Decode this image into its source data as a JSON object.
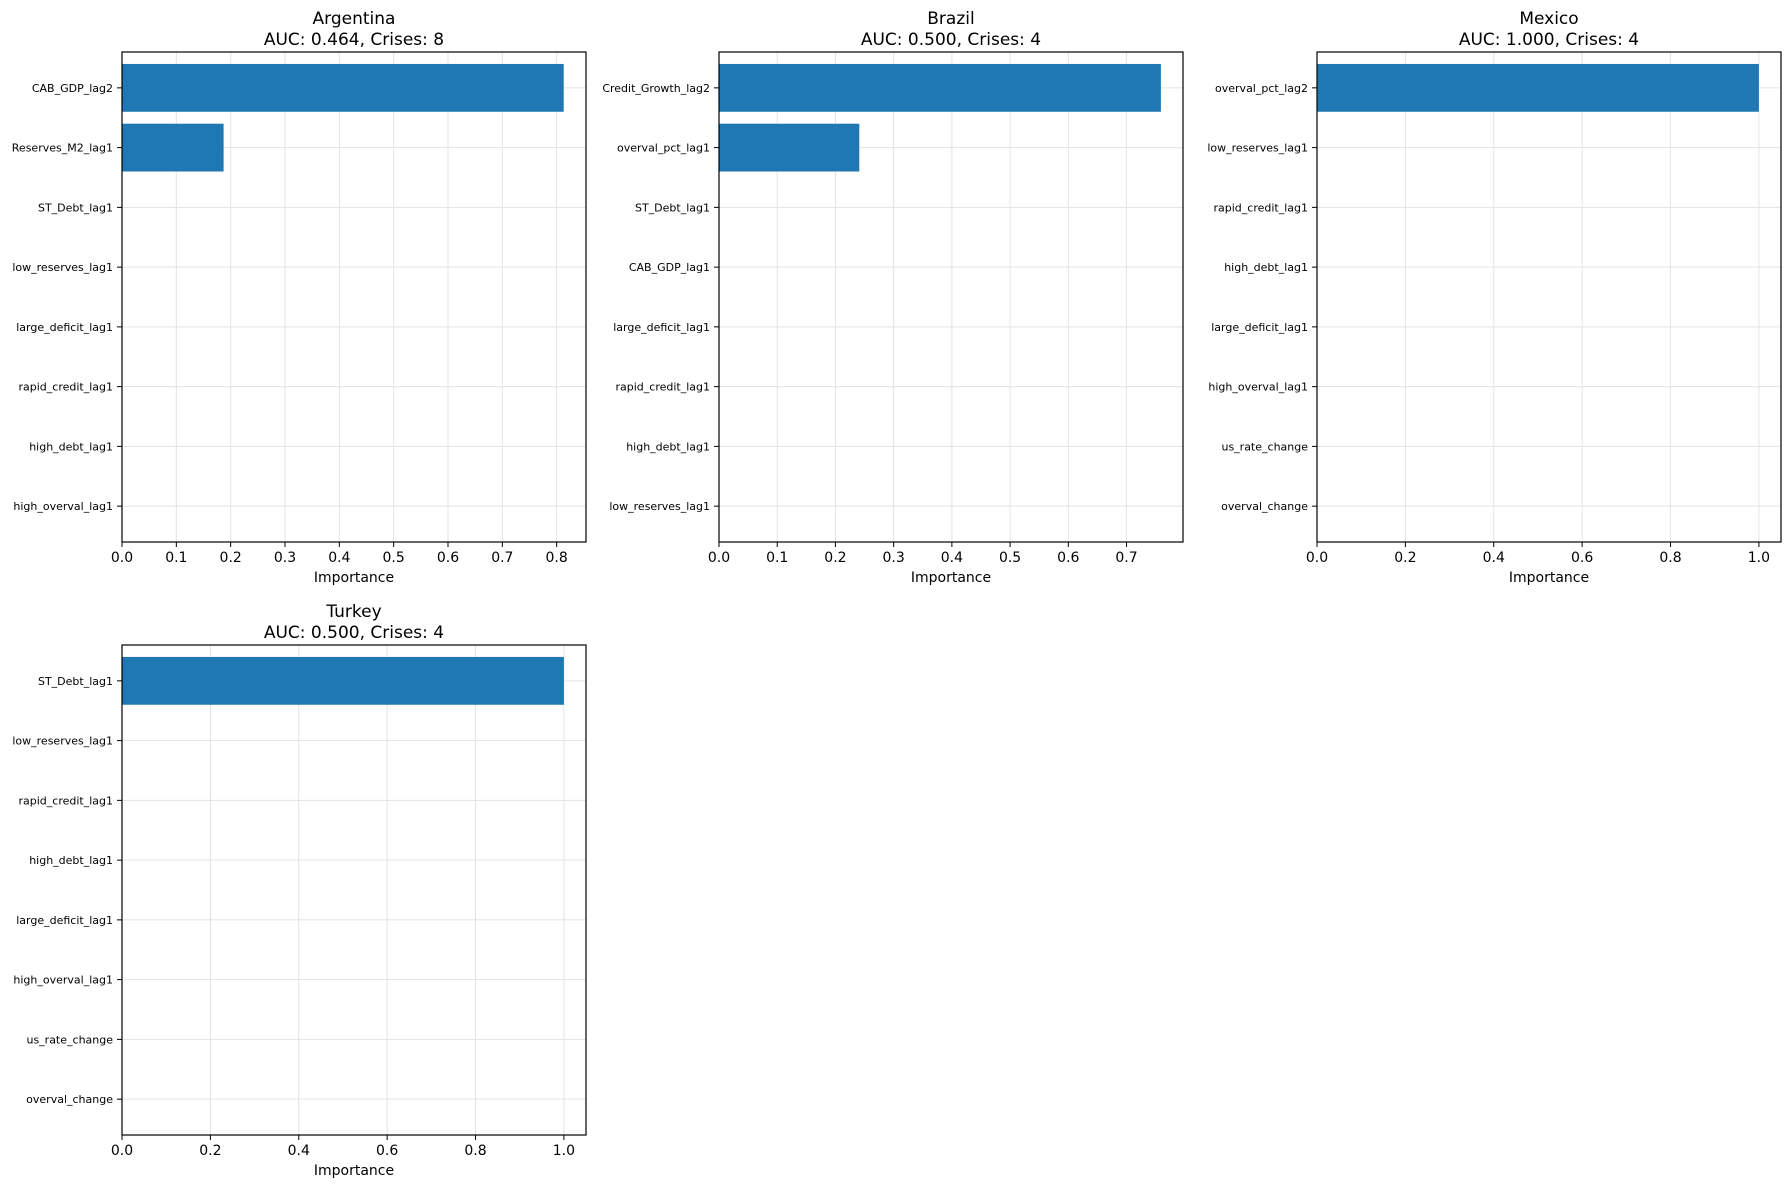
{
  "figure": {
    "bar_color": "#1f77b4"
  },
  "chart_data": [
    {
      "type": "bar",
      "orientation": "horizontal",
      "title": "Argentina\nAUC: 0.464, Crises: 8",
      "title_lines": [
        "Argentina",
        "AUC: 0.464, Crises: 8"
      ],
      "xlabel": "Importance",
      "ylabel": "",
      "categories": [
        "CAB_GDP_lag2",
        "Reserves_M2_lag1",
        "ST_Debt_lag1",
        "low_reserves_lag1",
        "large_deficit_lag1",
        "rapid_credit_lag1",
        "high_debt_lag1",
        "high_overval_lag1"
      ],
      "values": [
        0.813,
        0.187,
        0,
        0,
        0,
        0,
        0,
        0
      ],
      "xlim": [
        0,
        0.854
      ],
      "xticks": [
        "0.0",
        "0.1",
        "0.2",
        "0.3",
        "0.4",
        "0.5",
        "0.6",
        "0.7",
        "0.8"
      ],
      "grid": true
    },
    {
      "type": "bar",
      "orientation": "horizontal",
      "title": "Brazil\nAUC: 0.500, Crises: 4",
      "title_lines": [
        "Brazil",
        "AUC: 0.500, Crises: 4"
      ],
      "xlabel": "Importance",
      "ylabel": "",
      "categories": [
        "Credit_Growth_lag2",
        "overval_pct_lag1",
        "ST_Debt_lag1",
        "CAB_GDP_lag1",
        "large_deficit_lag1",
        "rapid_credit_lag1",
        "high_debt_lag1",
        "low_reserves_lag1"
      ],
      "values": [
        0.759,
        0.241,
        0,
        0,
        0,
        0,
        0,
        0
      ],
      "xlim": [
        0,
        0.797
      ],
      "xticks": [
        "0.0",
        "0.1",
        "0.2",
        "0.3",
        "0.4",
        "0.5",
        "0.6",
        "0.7"
      ],
      "grid": true
    },
    {
      "type": "bar",
      "orientation": "horizontal",
      "title": "Mexico\nAUC: 1.000, Crises: 4",
      "title_lines": [
        "Mexico",
        "AUC: 1.000, Crises: 4"
      ],
      "xlabel": "Importance",
      "ylabel": "",
      "categories": [
        "overval_pct_lag2",
        "low_reserves_lag1",
        "rapid_credit_lag1",
        "high_debt_lag1",
        "large_deficit_lag1",
        "high_overval_lag1",
        "us_rate_change",
        "overval_change"
      ],
      "values": [
        1.0,
        0,
        0,
        0,
        0,
        0,
        0,
        0
      ],
      "xlim": [
        0,
        1.05
      ],
      "xticks": [
        "0.0",
        "0.2",
        "0.4",
        "0.6",
        "0.8",
        "1.0"
      ],
      "grid": true
    },
    {
      "type": "bar",
      "orientation": "horizontal",
      "title": "Turkey\nAUC: 0.500, Crises: 4",
      "title_lines": [
        "Turkey",
        "AUC: 0.500, Crises: 4"
      ],
      "xlabel": "Importance",
      "ylabel": "",
      "categories": [
        "ST_Debt_lag1",
        "low_reserves_lag1",
        "rapid_credit_lag1",
        "high_debt_lag1",
        "large_deficit_lag1",
        "high_overval_lag1",
        "us_rate_change",
        "overval_change"
      ],
      "values": [
        1.0,
        0,
        0,
        0,
        0,
        0,
        0,
        0
      ],
      "xlim": [
        0,
        1.05
      ],
      "xticks": [
        "0.0",
        "0.2",
        "0.4",
        "0.6",
        "0.8",
        "1.0"
      ],
      "grid": true
    }
  ]
}
